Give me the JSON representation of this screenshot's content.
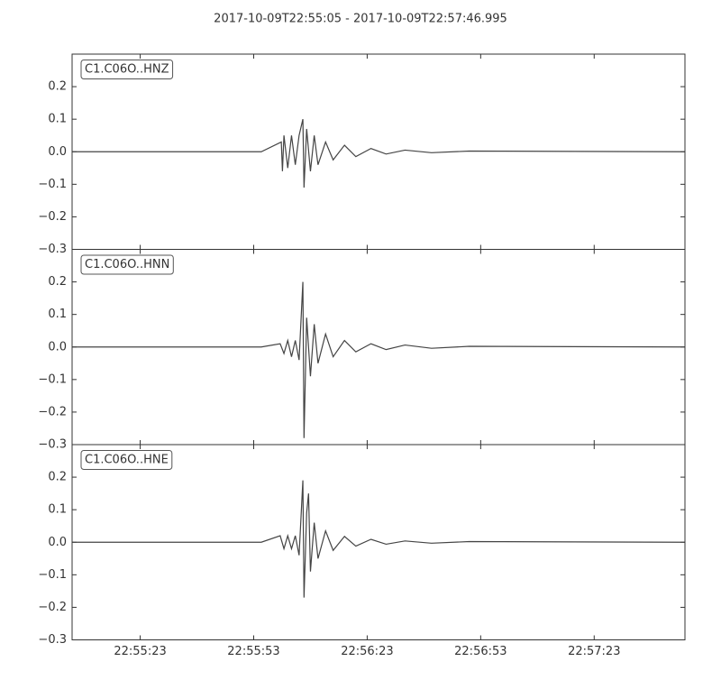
{
  "title": "2017-10-09T22:55:05  -  2017-10-09T22:57:46.995",
  "chart_data": [
    {
      "type": "line",
      "label": "C1.C06O..HNZ",
      "color": "#444444",
      "x": [
        "22:55:05",
        "22:55:55",
        "22:56:00.3",
        "22:56:00.6",
        "22:56:01",
        "22:56:02",
        "22:56:03",
        "22:56:04",
        "22:56:05",
        "22:56:06",
        "22:56:06.3",
        "22:56:07",
        "22:56:08",
        "22:56:09",
        "22:56:10",
        "22:56:12",
        "22:56:14",
        "22:56:17",
        "22:56:20",
        "22:56:24",
        "22:56:28",
        "22:56:33",
        "22:56:40",
        "22:56:50",
        "22:57:46.995"
      ],
      "values": [
        0,
        0,
        0.03,
        -0.06,
        0.05,
        -0.05,
        0.05,
        -0.04,
        0.05,
        0.1,
        -0.11,
        0.07,
        -0.06,
        0.05,
        -0.04,
        0.03,
        -0.025,
        0.02,
        -0.015,
        0.01,
        -0.007,
        0.005,
        -0.003,
        0.002,
        0
      ],
      "xlim": [
        "22:55:05",
        "22:57:46.995"
      ],
      "ylim": [
        -0.3,
        0.3
      ],
      "yticks": [
        {
          "value": -0.3,
          "label": "−0.3"
        },
        {
          "value": -0.2,
          "label": "−0.2"
        },
        {
          "value": -0.1,
          "label": "−0.1"
        },
        {
          "value": 0,
          "label": "0.0"
        },
        0.1,
        0.2
      ]
    },
    {
      "type": "line",
      "label": "C1.C06O..HNN",
      "color": "#444444",
      "x": [
        "22:55:05",
        "22:55:55",
        "22:56:00",
        "22:56:01",
        "22:56:02",
        "22:56:03",
        "22:56:04",
        "22:56:05",
        "22:56:06",
        "22:56:06.3",
        "22:56:07",
        "22:56:08",
        "22:56:09",
        "22:56:10",
        "22:56:12",
        "22:56:14",
        "22:56:17",
        "22:56:20",
        "22:56:24",
        "22:56:28",
        "22:56:33",
        "22:56:40",
        "22:56:50",
        "22:57:46.995"
      ],
      "values": [
        0,
        0,
        0.01,
        -0.02,
        0.02,
        -0.03,
        0.02,
        -0.04,
        0.2,
        -0.28,
        0.09,
        -0.09,
        0.07,
        -0.05,
        0.04,
        -0.03,
        0.02,
        -0.015,
        0.01,
        -0.008,
        0.006,
        -0.004,
        0.002,
        0
      ],
      "xlim": [
        "22:55:05",
        "22:57:46.995"
      ],
      "ylim": [
        -0.3,
        0.3
      ],
      "yticks": [
        {
          "value": -0.3,
          "label": "−0.3"
        },
        {
          "value": -0.2,
          "label": "−0.2"
        },
        {
          "value": -0.1,
          "label": "−0.1"
        },
        {
          "value": 0,
          "label": "0.0"
        },
        0.1,
        0.2
      ]
    },
    {
      "type": "line",
      "label": "C1.C06O..HNE",
      "color": "#444444",
      "x": [
        "22:55:05",
        "22:55:55",
        "22:56:00",
        "22:56:01",
        "22:56:02",
        "22:56:03",
        "22:56:04",
        "22:56:05",
        "22:56:06",
        "22:56:06.3",
        "22:56:07",
        "22:56:07.5",
        "22:56:08",
        "22:56:09",
        "22:56:10",
        "22:56:12",
        "22:56:14",
        "22:56:17",
        "22:56:20",
        "22:56:24",
        "22:56:28",
        "22:56:33",
        "22:56:40",
        "22:56:50",
        "22:57:46.995"
      ],
      "values": [
        0,
        0,
        0.02,
        -0.02,
        0.02,
        -0.02,
        0.02,
        -0.04,
        0.19,
        -0.17,
        0.09,
        0.15,
        -0.09,
        0.06,
        -0.05,
        0.035,
        -0.025,
        0.018,
        -0.012,
        0.009,
        -0.006,
        0.004,
        -0.003,
        0.002,
        0
      ],
      "xlim": [
        "22:55:05",
        "22:57:46.995"
      ],
      "ylim": [
        -0.3,
        0.3
      ],
      "yticks": [
        {
          "value": -0.3,
          "label": "−0.3"
        },
        {
          "value": -0.2,
          "label": "−0.2"
        },
        {
          "value": -0.1,
          "label": "−0.1"
        },
        {
          "value": 0,
          "label": "0.0"
        },
        0.1,
        0.2
      ],
      "xticks": [
        "22:55:23",
        "22:55:53",
        "22:56:23",
        "22:56:53",
        "22:57:23"
      ]
    }
  ]
}
